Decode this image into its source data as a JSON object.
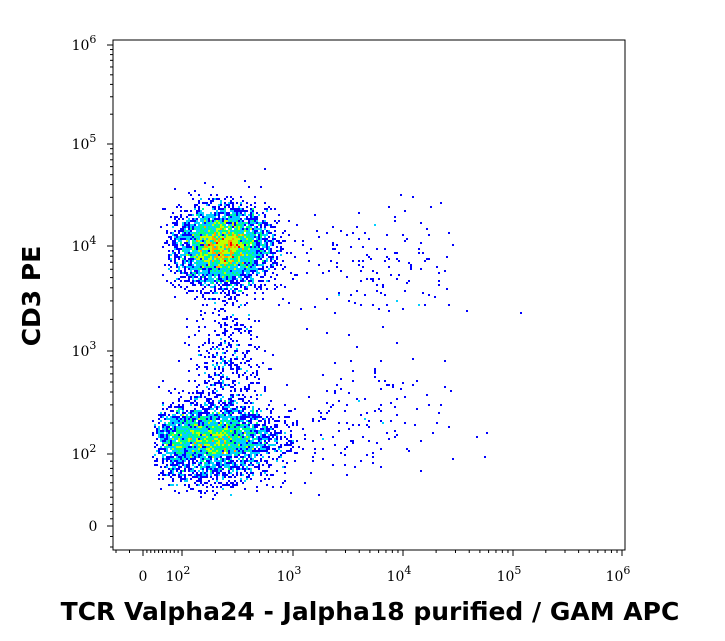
{
  "chart_data": {
    "type": "scatter",
    "subtype": "flow-cytometry-density-dot-plot",
    "title": "",
    "xlabel": "TCR Valpha24 - Jalpha18 purified / GAM APC",
    "ylabel": "CD3 PE",
    "x_scale": "biexponential",
    "y_scale": "biexponential",
    "xlim": [
      -20,
      1000000
    ],
    "ylim": [
      -20,
      1000000
    ],
    "x_ticks": [
      {
        "value": 0,
        "label": "0"
      },
      {
        "value": 100,
        "base": "10",
        "exp": "2"
      },
      {
        "value": 1000,
        "base": "10",
        "exp": "3"
      },
      {
        "value": 10000,
        "base": "10",
        "exp": "4"
      },
      {
        "value": 100000,
        "base": "10",
        "exp": "5"
      },
      {
        "value": 1000000,
        "base": "10",
        "exp": "6"
      }
    ],
    "y_ticks": [
      {
        "value": 0,
        "label": "0"
      },
      {
        "value": 100,
        "base": "10",
        "exp": "2"
      },
      {
        "value": 1000,
        "base": "10",
        "exp": "3"
      },
      {
        "value": 10000,
        "base": "10",
        "exp": "4"
      },
      {
        "value": 100000,
        "base": "10",
        "exp": "5"
      },
      {
        "value": 1000000,
        "base": "10",
        "exp": "6"
      }
    ],
    "grid": false,
    "colormap": [
      "#0000ff",
      "#0080ff",
      "#00d0ff",
      "#00ff80",
      "#c0ff00",
      "#ffa000",
      "#ff0000"
    ],
    "populations": [
      {
        "center": [
          230,
          10000
        ],
        "spread": [
          0.2,
          0.18
        ],
        "density": "high"
      },
      {
        "center": [
          180,
          140
        ],
        "spread": [
          0.28,
          0.16
        ],
        "density": "medium"
      },
      {
        "center": [
          250,
          700
        ],
        "spread": [
          0.15,
          0.35
        ],
        "density": "low"
      },
      {
        "center": [
          5000,
          6000
        ],
        "spread": [
          0.45,
          0.3
        ],
        "density": "sparse"
      },
      {
        "center": [
          3000,
          200
        ],
        "spread": [
          0.45,
          0.3
        ],
        "density": "sparse"
      }
    ]
  }
}
